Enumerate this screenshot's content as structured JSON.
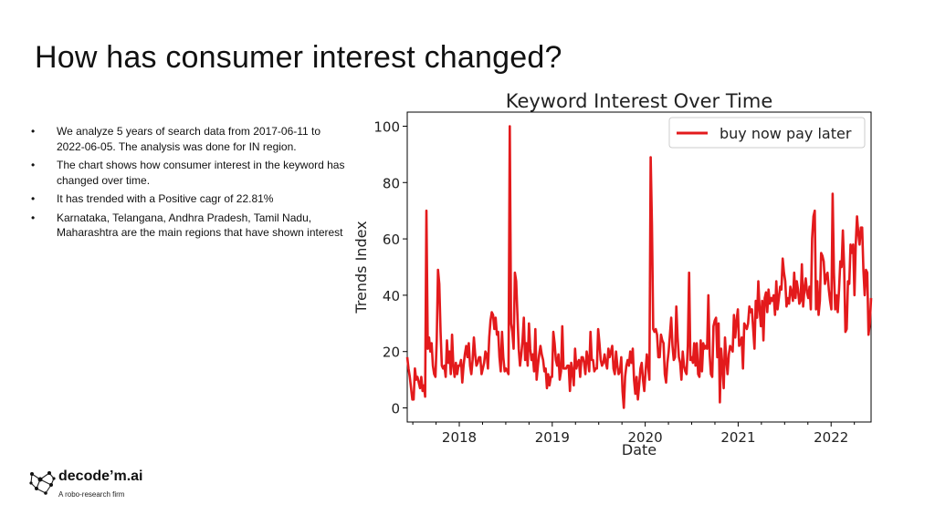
{
  "slide": {
    "title": "How has consumer interest changed?",
    "bullets": [
      "We analyze 5 years of search data from 2017-06-11 to 2022-06-05. The analysis was done for IN region.",
      "The chart shows how consumer interest in the keyword has changed over time.",
      "It has trended with a Positive cagr of 22.81%",
      "Karnataka, Telangana, Andhra Pradesh, Tamil Nadu, Maharashtra are the main regions that have shown interest"
    ],
    "bullet_glyph": "•"
  },
  "logo": {
    "name": "decode’m.ai",
    "tagline": "A robo-research firm",
    "icon": "brain-network-icon"
  },
  "chart_data": {
    "type": "line",
    "title": "Keyword Interest Over Time",
    "xlabel": "Date",
    "ylabel": "Trends Index",
    "xlim": [
      2017.44,
      2022.43
    ],
    "ylim": [
      -5,
      105
    ],
    "x_ticks": [
      2018,
      2019,
      2020,
      2021,
      2022
    ],
    "y_ticks": [
      0,
      20,
      40,
      60,
      80,
      100
    ],
    "grid": false,
    "legend_position": "top-right",
    "series": [
      {
        "name": "buy now pay later",
        "color": "#e31a1c",
        "x_start": 2017.44,
        "x_end": 2022.43,
        "values": [
          18,
          14,
          11,
          7,
          3,
          3,
          14,
          10,
          11,
          9,
          7,
          11,
          6,
          8,
          4,
          70,
          21,
          25,
          20,
          23,
          15,
          12,
          11,
          24,
          49,
          44,
          27,
          15,
          14,
          15,
          11,
          24,
          16,
          20,
          12,
          26,
          15,
          11,
          16,
          12,
          15,
          15,
          17,
          9,
          15,
          19,
          22,
          18,
          23,
          15,
          12,
          17,
          25,
          19,
          15,
          16,
          18,
          18,
          12,
          14,
          16,
          20,
          19,
          14,
          25,
          31,
          34,
          33,
          28,
          32,
          26,
          27,
          18,
          13,
          27,
          18,
          13,
          14,
          13,
          12,
          100,
          30,
          27,
          21,
          48,
          45,
          33,
          21,
          15,
          19,
          24,
          32,
          17,
          23,
          15,
          30,
          21,
          17,
          19,
          13,
          28,
          10,
          15,
          19,
          22,
          19,
          17,
          13,
          14,
          7,
          12,
          8,
          11,
          11,
          27,
          23,
          17,
          15,
          19,
          10,
          13,
          29,
          14,
          14,
          14,
          15,
          15,
          6,
          16,
          13,
          8,
          21,
          14,
          16,
          17,
          11,
          18,
          18,
          16,
          12,
          20,
          17,
          13,
          27,
          17,
          17,
          13,
          14,
          14,
          28,
          23,
          17,
          15,
          16,
          19,
          16,
          14,
          21,
          18,
          20,
          22,
          14,
          12,
          20,
          15,
          12,
          13,
          18,
          6,
          0,
          11,
          15,
          17,
          15,
          20,
          16,
          21,
          10,
          5,
          11,
          3,
          8,
          14,
          16,
          10,
          6,
          13,
          19,
          15,
          10,
          89,
          65,
          28,
          27,
          28,
          26,
          18,
          18,
          26,
          24,
          23,
          12,
          9,
          16,
          20,
          26,
          32,
          22,
          17,
          18,
          36,
          25,
          18,
          16,
          10,
          20,
          15,
          13,
          12,
          22,
          48,
          17,
          18,
          16,
          23,
          15,
          23,
          12,
          11,
          24,
          13,
          23,
          21,
          22,
          21,
          40,
          19,
          12,
          11,
          29,
          31,
          32,
          18,
          30,
          2,
          21,
          15,
          7,
          25,
          17,
          12,
          19,
          22,
          21,
          20,
          33,
          25,
          31,
          35,
          22,
          23,
          25,
          14,
          30,
          29,
          28,
          30,
          36,
          34,
          35,
          28,
          21,
          38,
          32,
          45,
          35,
          29,
          38,
          24,
          39,
          41,
          34,
          42,
          37,
          39,
          38,
          40,
          33,
          45,
          35,
          39,
          43,
          42,
          53,
          48,
          45,
          36,
          39,
          37,
          43,
          41,
          38,
          48,
          39,
          45,
          42,
          37,
          38,
          51,
          36,
          42,
          46,
          41,
          39,
          43,
          35,
          60,
          68,
          70,
          35,
          45,
          33,
          38,
          55,
          54,
          52,
          44,
          47,
          48,
          42,
          38,
          35,
          76,
          48,
          35,
          40,
          34,
          42,
          52,
          50,
          63,
          50,
          27,
          28,
          45,
          44,
          58,
          55,
          58,
          40,
          58,
          68,
          62,
          58,
          64,
          64,
          49,
          40,
          49,
          48,
          26,
          30,
          39
        ]
      }
    ]
  }
}
